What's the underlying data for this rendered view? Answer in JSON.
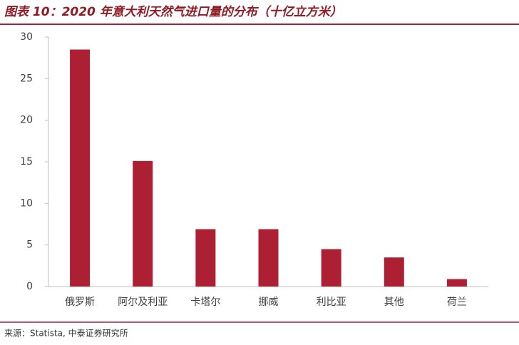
{
  "chart_data": {
    "type": "bar",
    "title": "图表 10：2020 年意大利天然气进口量的分布（十亿立方米）",
    "source": "来源：Statista, 中泰证券研究所",
    "categories": [
      "俄罗斯",
      "阿尔及利亚",
      "卡塔尔",
      "挪威",
      "利比亚",
      "其他",
      "荷兰"
    ],
    "values": [
      28.5,
      15.1,
      6.9,
      6.9,
      4.5,
      3.5,
      0.9
    ],
    "color": "#ad2033",
    "ylim": [
      0,
      30
    ],
    "yticks": [
      0,
      5,
      10,
      15,
      20,
      25,
      30
    ],
    "grid": false
  }
}
